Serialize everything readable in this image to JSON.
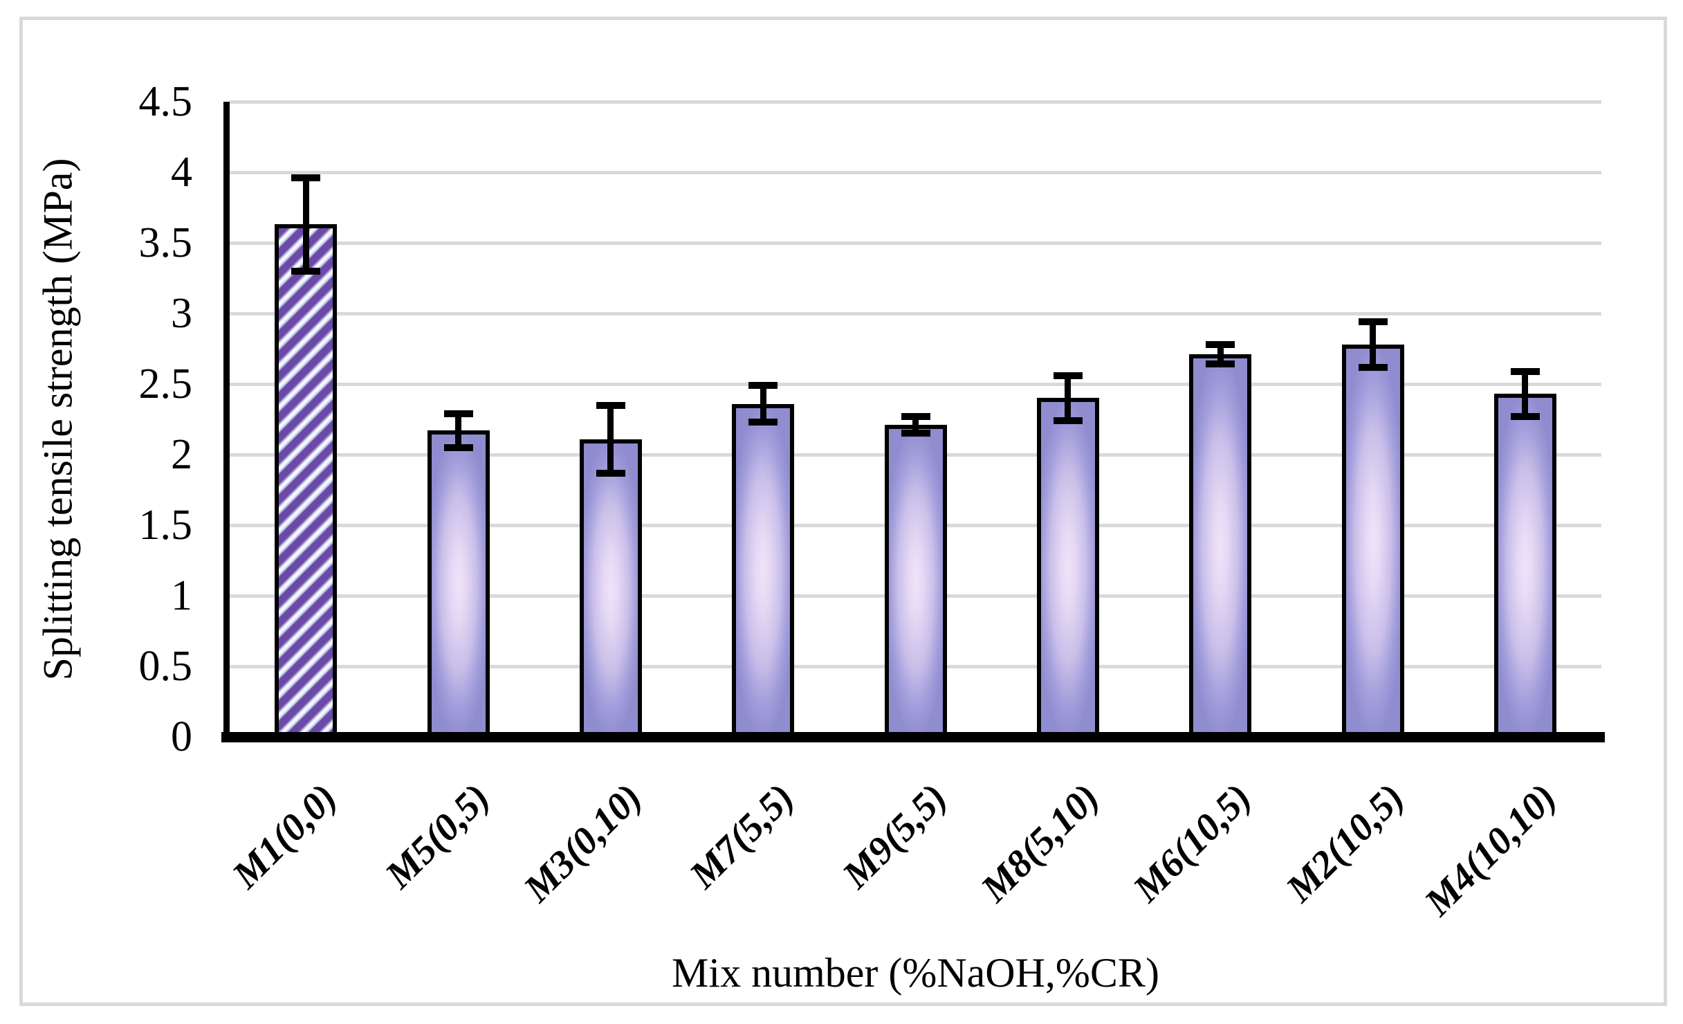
{
  "figure": {
    "background": "#ffffff",
    "border_color": "#d9d9d9"
  },
  "chart_data": {
    "type": "bar",
    "title": "",
    "xlabel": "Mix number (%NaOH,%CR)",
    "ylabel": "Splitting tensile strength (MPa)",
    "categories": [
      "M1(0,0)",
      "M5(0,5)",
      "M3(0,10)",
      "M7(5,5)",
      "M9(5,5)",
      "M8(5,10)",
      "M6(10,5)",
      "M2(10,5)",
      "M4(10,10)"
    ],
    "values": [
      3.63,
      2.17,
      2.11,
      2.36,
      2.21,
      2.4,
      2.71,
      2.78,
      2.43
    ],
    "error_bars": [
      0.33,
      0.12,
      0.24,
      0.13,
      0.06,
      0.16,
      0.07,
      0.16,
      0.16
    ],
    "ylim": [
      0,
      4.5
    ],
    "ytick_interval": 0.5,
    "ytick_labels": [
      "0",
      "0.5",
      "1",
      "1.5",
      "2",
      "2.5",
      "3",
      "3.5",
      "4",
      "4.5"
    ],
    "grid": true,
    "legend_position": "none",
    "bar_styles": [
      "diagonal-hatch",
      "gradient",
      "gradient",
      "gradient",
      "gradient",
      "gradient",
      "gradient",
      "gradient",
      "gradient"
    ],
    "colors": {
      "hatch_purple": "#6a49a7",
      "hatch_light_blue": "#c9d4ee",
      "hatch_white": "#ffffff",
      "gradient_edge": "#8f8cd0",
      "gradient_center": "#f0e4fa",
      "bar_border": "#000000",
      "error_bar": "#000000",
      "gridline": "#d9d9d9",
      "axis": "#000000"
    }
  }
}
